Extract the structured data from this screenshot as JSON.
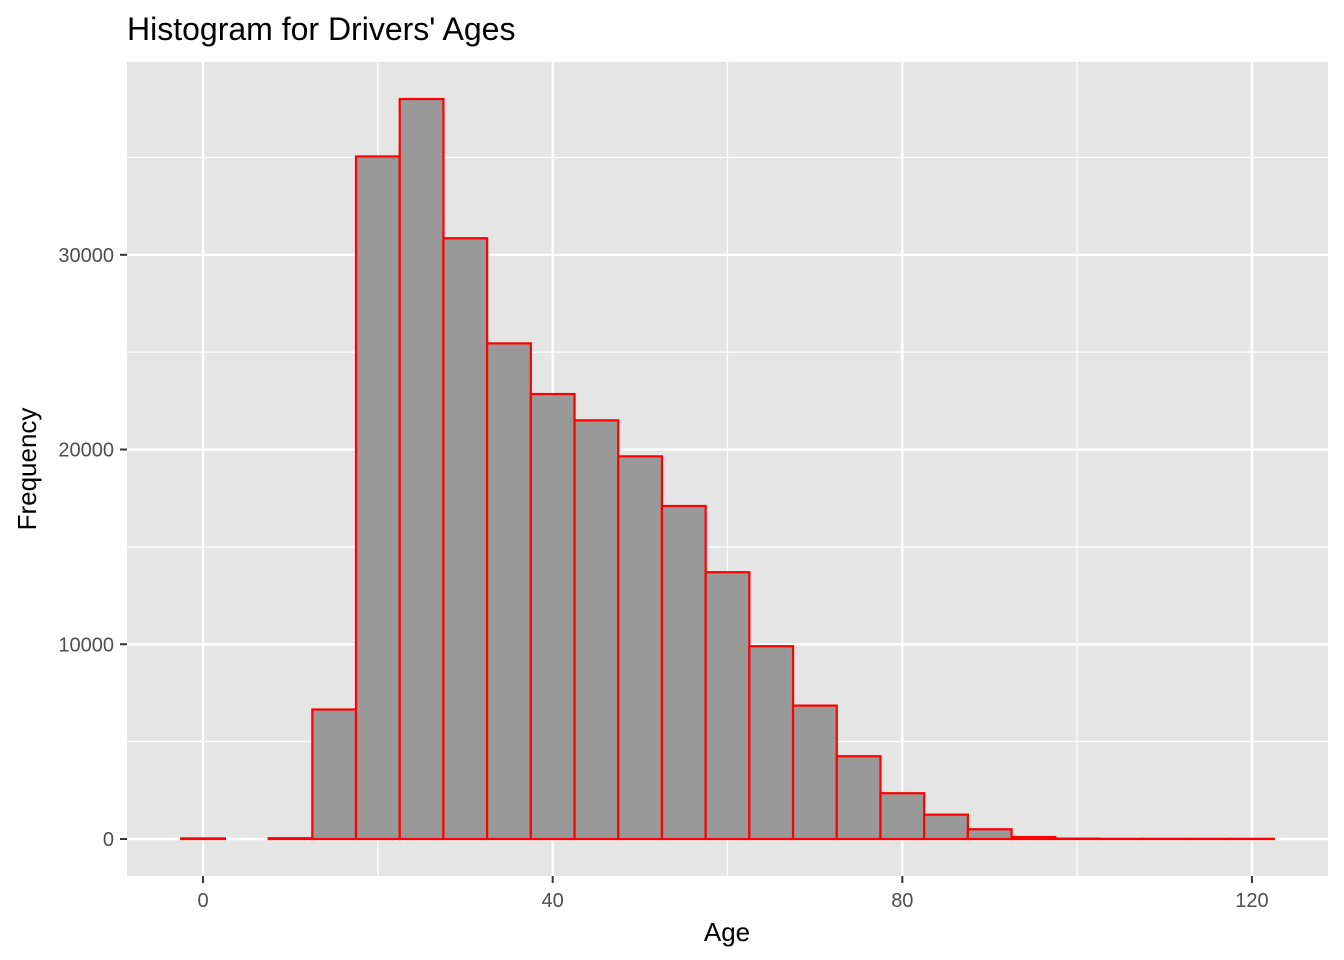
{
  "chart_data": {
    "type": "bar",
    "title": "Histogram for Drivers' Ages",
    "xlabel": "Age",
    "ylabel": "Frequency",
    "x_bin_width": 5,
    "bins": [
      {
        "x": 0,
        "count": 30
      },
      {
        "x": 5,
        "count": 0
      },
      {
        "x": 10,
        "count": 40
      },
      {
        "x": 15,
        "count": 6650
      },
      {
        "x": 20,
        "count": 35050
      },
      {
        "x": 25,
        "count": 38000
      },
      {
        "x": 30,
        "count": 30850
      },
      {
        "x": 35,
        "count": 25450
      },
      {
        "x": 40,
        "count": 22850
      },
      {
        "x": 45,
        "count": 21500
      },
      {
        "x": 50,
        "count": 19650
      },
      {
        "x": 55,
        "count": 17100
      },
      {
        "x": 60,
        "count": 13700
      },
      {
        "x": 65,
        "count": 9900
      },
      {
        "x": 70,
        "count": 6850
      },
      {
        "x": 75,
        "count": 4250
      },
      {
        "x": 80,
        "count": 2350
      },
      {
        "x": 85,
        "count": 1250
      },
      {
        "x": 90,
        "count": 500
      },
      {
        "x": 95,
        "count": 100
      },
      {
        "x": 100,
        "count": 20
      },
      {
        "x": 105,
        "count": 10
      },
      {
        "x": 110,
        "count": 10
      },
      {
        "x": 115,
        "count": 10
      },
      {
        "x": 120,
        "count": 10
      }
    ],
    "x_ticks": [
      {
        "value": 0,
        "label": "0"
      },
      {
        "value": 40,
        "label": "40"
      },
      {
        "value": 80,
        "label": "80"
      },
      {
        "value": 120,
        "label": "120"
      }
    ],
    "y_ticks": [
      {
        "value": 0,
        "label": "0"
      },
      {
        "value": 10000,
        "label": "10000"
      },
      {
        "value": 20000,
        "label": "20000"
      },
      {
        "value": 30000,
        "label": "30000"
      }
    ],
    "xlim": [
      -8.7,
      128.7
    ],
    "ylim": [
      -1900,
      39900
    ],
    "grid": true,
    "colors": {
      "panel_background": "#e5e5e5",
      "grid": "#ffffff",
      "bar_fill": "#999999",
      "bar_outline": "#ff0000"
    }
  }
}
